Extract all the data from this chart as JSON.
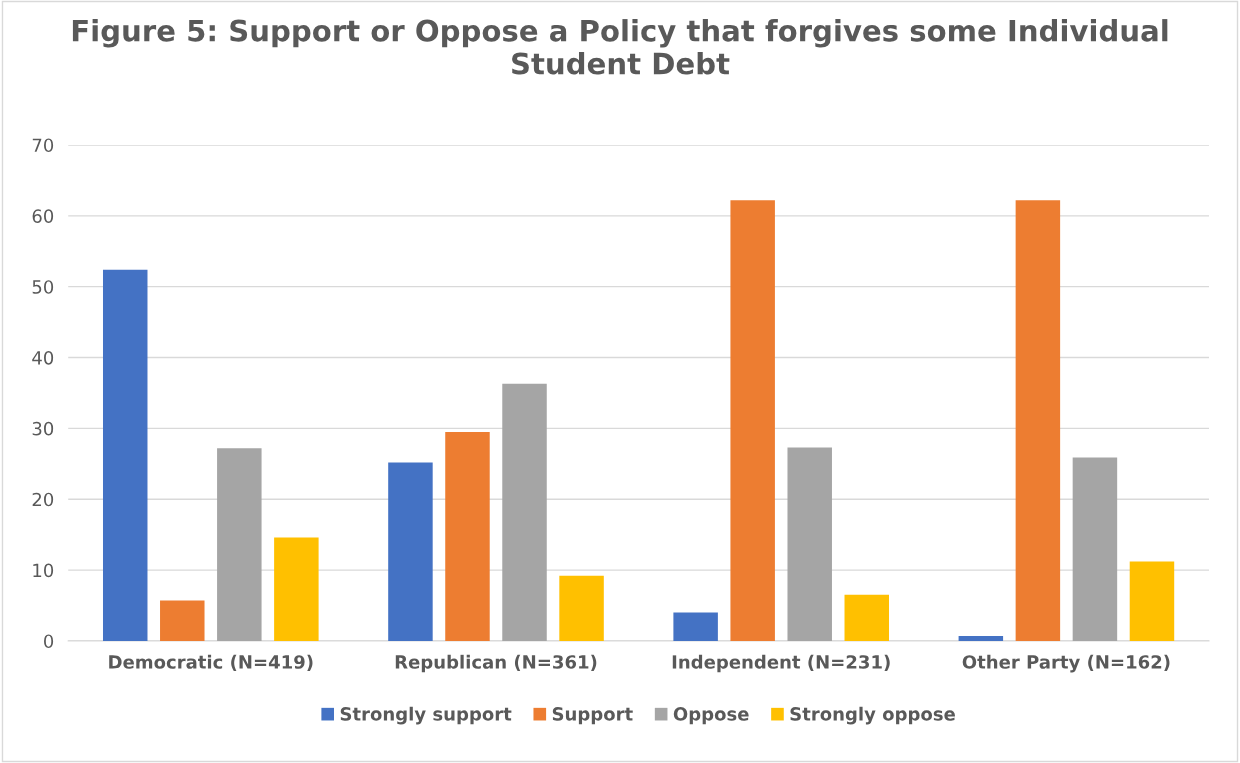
{
  "chart_data": {
    "type": "bar",
    "title": "Figure 5: Support or Oppose a Policy that forgives some Individual Student Debt",
    "categories": [
      "Democratic (N=419)",
      "Republican (N=361)",
      "Independent (N=231)",
      "Other Party (N=162)"
    ],
    "series": [
      {
        "name": "Strongly support",
        "color": "#4472c4",
        "values": [
          52.4,
          25.2,
          4.0,
          0.7
        ]
      },
      {
        "name": "Support",
        "color": "#ed7d31",
        "values": [
          5.7,
          29.5,
          62.2,
          62.2
        ]
      },
      {
        "name": "Oppose",
        "color": "#a5a5a5",
        "values": [
          27.2,
          36.3,
          27.3,
          25.9
        ]
      },
      {
        "name": "Strongly oppose",
        "color": "#ffc000",
        "values": [
          14.6,
          9.2,
          6.5,
          11.2
        ]
      }
    ],
    "ylim": [
      0,
      70
    ],
    "yticks": [
      0,
      10,
      20,
      30,
      40,
      50,
      60,
      70
    ],
    "grid": "y",
    "legend": "bottom"
  }
}
